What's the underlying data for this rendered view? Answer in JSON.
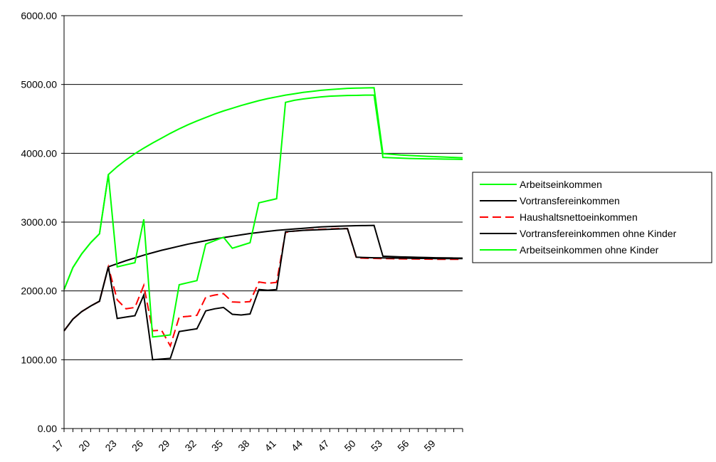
{
  "chart_data": {
    "type": "line",
    "title": "",
    "xlabel": "",
    "ylabel": "",
    "x": [
      17,
      18,
      19,
      20,
      21,
      22,
      23,
      24,
      25,
      26,
      27,
      28,
      29,
      30,
      31,
      32,
      33,
      34,
      35,
      36,
      37,
      38,
      39,
      40,
      41,
      42,
      43,
      44,
      45,
      46,
      47,
      48,
      49,
      50,
      51,
      52,
      53,
      54,
      55,
      56,
      57,
      58,
      59,
      60,
      61,
      62
    ],
    "x_tick_labels": [
      "17",
      "20",
      "23",
      "26",
      "29",
      "32",
      "35",
      "38",
      "41",
      "44",
      "47",
      "50",
      "53",
      "56",
      "59"
    ],
    "y_tick_labels": [
      "0.00",
      "1000.00",
      "2000.00",
      "3000.00",
      "4000.00",
      "5000.00",
      "6000.00"
    ],
    "ylim": [
      0,
      6000
    ],
    "grid": "horizontal major gridlines",
    "legend_position": "right",
    "series": [
      {
        "name": "Arbeitseinkommen",
        "color": "#00ff00",
        "dash": "solid",
        "values": [
          2020,
          2340,
          2540,
          2700,
          2830,
          3690,
          3805,
          3905,
          3995,
          4075,
          4150,
          4220,
          4290,
          4355,
          4415,
          4470,
          4520,
          4570,
          4615,
          4655,
          4695,
          4730,
          4765,
          4795,
          4820,
          4845,
          4865,
          4885,
          4900,
          4915,
          4925,
          4935,
          4943,
          4948,
          4950,
          4952,
          3995,
          3985,
          3975,
          3968,
          3962,
          3955,
          3950,
          3945,
          3940,
          3935
        ]
      },
      {
        "name": "Vortransfereinkommen",
        "color": "#000000",
        "dash": "solid",
        "values": [
          1420,
          1590,
          1700,
          1780,
          1850,
          2350,
          2395,
          2440,
          2480,
          2520,
          2555,
          2590,
          2620,
          2650,
          2680,
          2705,
          2730,
          2755,
          2775,
          2795,
          2815,
          2835,
          2850,
          2865,
          2880,
          2890,
          2900,
          2910,
          2920,
          2930,
          2935,
          2940,
          2945,
          2948,
          2950,
          2952,
          2505,
          2500,
          2495,
          2492,
          2488,
          2485,
          2482,
          2480,
          2478,
          2476
        ]
      },
      {
        "name": "Haushaltsnettoeinkommen",
        "color": "#ff0000",
        "dash": "dashed",
        "values": [
          1420,
          1590,
          1700,
          1780,
          1850,
          2350,
          1870,
          1740,
          1760,
          2080,
          1420,
          1430,
          1200,
          1620,
          1630,
          1645,
          1910,
          1940,
          1960,
          1840,
          1835,
          1845,
          2130,
          2110,
          2125,
          2850,
          2870,
          2880,
          2890,
          2895,
          2900,
          2905,
          2905,
          2480,
          2475,
          2473,
          2470,
          2468,
          2466,
          2465,
          2463,
          2462,
          2460,
          2460,
          2460,
          2460
        ]
      },
      {
        "name": "Vortransfereinkommen ohne Kinder",
        "color": "#000000",
        "dash": "solid",
        "values": [
          1420,
          1590,
          1700,
          1780,
          1850,
          2350,
          1600,
          1620,
          1640,
          1940,
          1000,
          1010,
          1020,
          1410,
          1430,
          1450,
          1710,
          1740,
          1760,
          1660,
          1650,
          1665,
          2020,
          2010,
          2020,
          2860,
          2870,
          2880,
          2885,
          2890,
          2895,
          2900,
          2905,
          2490,
          2485,
          2482,
          2480,
          2478,
          2476,
          2475,
          2473,
          2472,
          2470,
          2470,
          2470,
          2470
        ]
      },
      {
        "name": "Arbeitseinkommen ohne Kinder",
        "color": "#00ff00",
        "dash": "solid",
        "values": [
          2020,
          2340,
          2540,
          2700,
          2830,
          3690,
          2350,
          2380,
          2410,
          3040,
          1330,
          1345,
          1360,
          2090,
          2120,
          2150,
          2680,
          2730,
          2780,
          2620,
          2660,
          2700,
          3280,
          3310,
          3340,
          4740,
          4770,
          4790,
          4805,
          4820,
          4830,
          4835,
          4840,
          4842,
          4845,
          4845,
          3940,
          3935,
          3930,
          3925,
          3922,
          3920,
          3918,
          3916,
          3914,
          3912
        ]
      }
    ]
  }
}
